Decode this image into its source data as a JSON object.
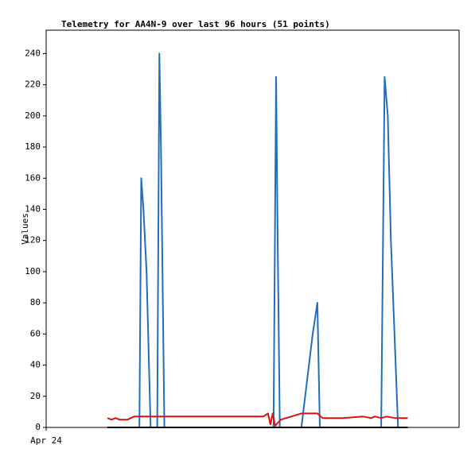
{
  "chart_data": {
    "type": "line",
    "title": "Telemetry for AA4N-9 over last 96 hours (51 points)",
    "y_label": "Values",
    "xlim": [
      0,
      132
    ],
    "xticks": [
      {
        "value": 0,
        "label": "Apr 24"
      }
    ],
    "ylim": [
      0,
      255
    ],
    "yticks": [
      0,
      20,
      40,
      60,
      80,
      100,
      120,
      140,
      160,
      180,
      200,
      220,
      240
    ],
    "series": [
      {
        "color": "#1f6fbf",
        "x": [
          19.6,
          29.8,
          30.4,
          31.1,
          32.1,
          33.4,
          35.5,
          36.2,
          36.7,
          37.8,
          72.7,
          73.5,
          74.0,
          74.7,
          81.6,
          85.2,
          86.7,
          87.5,
          107.1,
          108.2,
          109.2,
          110.2,
          112.5,
          115.6
        ],
        "values": [
          0,
          0,
          160,
          140,
          100,
          0,
          0,
          240,
          180,
          0,
          0,
          225,
          120,
          0,
          0,
          60,
          80,
          0,
          0,
          225,
          200,
          120,
          0,
          0
        ]
      },
      {
        "color": "#000000",
        "x": [
          19.6,
          115.6
        ],
        "values": [
          0,
          0
        ]
      },
      {
        "color": "#e01010",
        "x": [
          19.6,
          20.9,
          22.2,
          23.5,
          26.0,
          28.1,
          36.2,
          69.4,
          70.9,
          71.7,
          72.4,
          73.2,
          75.0,
          81.6,
          86.7,
          88.3,
          94.9,
          101.3,
          103.8,
          105.1,
          107.1,
          108.9,
          111.5,
          115.6
        ],
        "values": [
          6,
          5,
          6,
          5,
          5,
          7,
          7,
          7,
          9,
          2,
          9,
          1,
          5,
          9,
          9,
          6,
          6,
          7,
          6,
          7,
          6,
          7,
          6,
          6
        ]
      }
    ]
  }
}
